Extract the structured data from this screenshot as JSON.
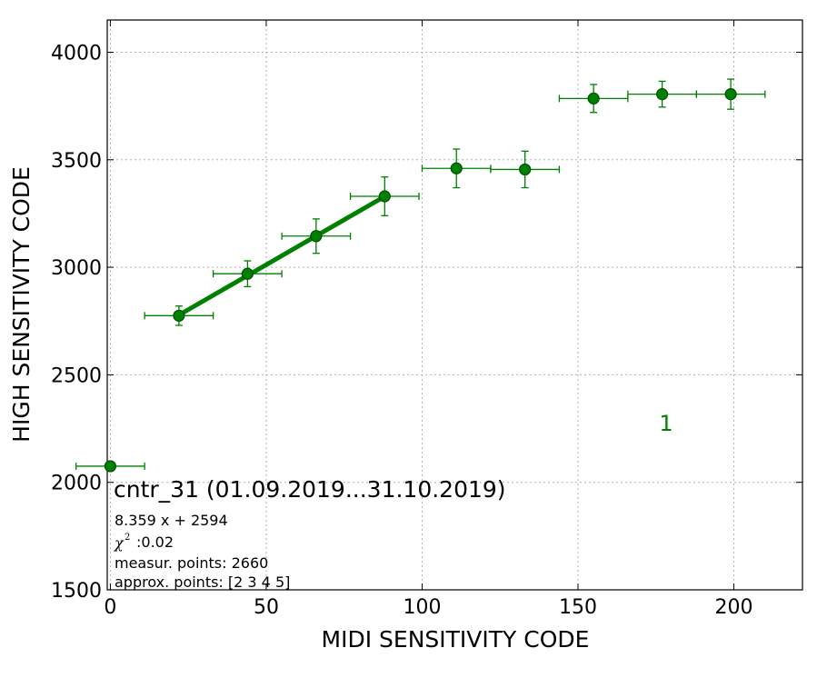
{
  "colors": {
    "series": "#008000",
    "marker_fill": "#008000",
    "marker_edge": "#004d00",
    "grid": "#b0b0b0",
    "axes": "#000000",
    "background": "#ffffff"
  },
  "chart_data": {
    "type": "scatter",
    "xlabel": "MIDI SENSITIVITY CODE",
    "ylabel": "HIGH SENSITIVITY CODE",
    "xlim": [
      -1,
      222
    ],
    "ylim": [
      1500,
      4150
    ],
    "xticks": [
      0,
      50,
      100,
      150,
      200
    ],
    "yticks": [
      1500,
      2000,
      2500,
      3000,
      3500,
      4000
    ],
    "grid": true,
    "series": [
      {
        "points": [
          {
            "x": 0,
            "y": 2075,
            "xerr": 11,
            "yerr": 0
          },
          {
            "x": 22,
            "y": 2775,
            "xerr": 11,
            "yerr": 45
          },
          {
            "x": 44,
            "y": 2970,
            "xerr": 11,
            "yerr": 60
          },
          {
            "x": 66,
            "y": 3145,
            "xerr": 11,
            "yerr": 80
          },
          {
            "x": 88,
            "y": 3330,
            "xerr": 11,
            "yerr": 90
          },
          {
            "x": 111,
            "y": 3460,
            "xerr": 11,
            "yerr": 90
          },
          {
            "x": 133,
            "y": 3455,
            "xerr": 11,
            "yerr": 85
          },
          {
            "x": 155,
            "y": 3785,
            "xerr": 11,
            "yerr": 65
          },
          {
            "x": 177,
            "y": 3805,
            "xerr": 11,
            "yerr": 60
          },
          {
            "x": 199,
            "y": 3805,
            "xerr": 11,
            "yerr": 70
          }
        ]
      }
    ],
    "fit_line": {
      "x_start": 22,
      "x_end": 88,
      "slope": 8.359,
      "intercept": 2594
    },
    "annotations": {
      "title": "cntr_31 (01.09.2019...31.10.2019)",
      "equation": "8.359 x + 2594",
      "chi_symbol": "χ",
      "chi_sup": "2",
      "chi_value": ":0.02",
      "measur_points": "measur. points: 2660",
      "approx_points": "approx. points: [2 3 4 5]",
      "channel": "1"
    }
  }
}
